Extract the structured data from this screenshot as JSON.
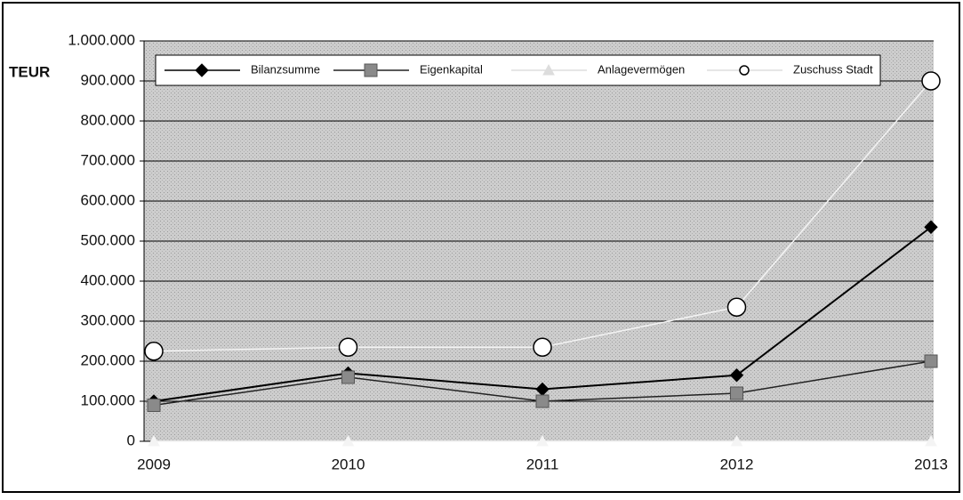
{
  "chart_data": {
    "type": "line",
    "y_label": "TEUR",
    "categories": [
      "2009",
      "2010",
      "2011",
      "2012",
      "2013"
    ],
    "series": [
      {
        "name": "Bilanzsumme",
        "color": "#000000",
        "marker": "diamond",
        "marker_color": "#000000",
        "values": [
          100000,
          170000,
          130000,
          165000,
          535000
        ]
      },
      {
        "name": "Eigenkapital",
        "color": "#222222",
        "marker": "square",
        "marker_color": "#8a8a8a",
        "values": [
          90000,
          160000,
          100000,
          120000,
          200000
        ]
      },
      {
        "name": "Anlagevermögen",
        "color": "#f4f4f4",
        "marker": "triangle",
        "marker_color": "#f4f4f4",
        "values": [
          0,
          0,
          0,
          0,
          0
        ]
      },
      {
        "name": "Zuschuss Stadt",
        "color": "#f4f4f4",
        "marker": "circle",
        "marker_color": "#ffffff",
        "values": [
          225000,
          235000,
          235000,
          335000,
          900000
        ]
      }
    ],
    "ylim": [
      0,
      1000000
    ],
    "yticks": [
      0,
      {
        "value": 100000,
        "label": "100.000"
      },
      {
        "value": 200000,
        "label": "200.000"
      },
      {
        "value": 300000,
        "label": "300.000"
      },
      {
        "value": 400000,
        "label": "400.000"
      },
      {
        "value": 500000,
        "label": "500.000"
      },
      {
        "value": 600000,
        "label": "600.000"
      },
      {
        "value": 700000,
        "label": "700.000"
      },
      {
        "value": 800000,
        "label": "800.000"
      },
      {
        "value": 900000,
        "label": "900.000"
      },
      {
        "value": 1000000,
        "label": "1.000.000"
      }
    ],
    "grid": true,
    "legend": "top"
  }
}
